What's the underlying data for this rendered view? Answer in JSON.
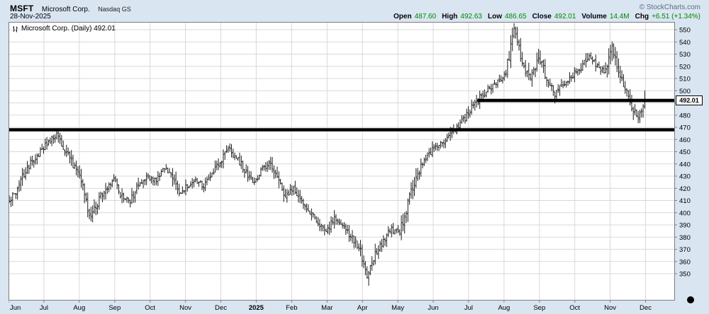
{
  "header": {
    "symbol": "MSFT",
    "company": "Microsoft Corp.",
    "exchange": "Nasdaq GS",
    "copyright": "© StockCharts.com",
    "date": "28-Nov-2025",
    "quote": [
      {
        "label": "Open",
        "value": "487.60"
      },
      {
        "label": "High",
        "value": "492.63"
      },
      {
        "label": "Low",
        "value": "486.65"
      },
      {
        "label": "Close",
        "value": "492.01"
      },
      {
        "label": "Volume",
        "value": "14.4M"
      },
      {
        "label": "Chg",
        "value": "+6.51 (+1.34%)"
      }
    ]
  },
  "legend": {
    "text": "Microsoft Corp. (Daily) 492.01"
  },
  "last_price_label": "492.01",
  "icons": {
    "chart_type": "mini-ohlc-glyph",
    "cursor_dot": "filled-black-circle"
  },
  "colors": {
    "background": "#d9e5f1",
    "plot_background": "#ffffff",
    "grid": "#d9d9d9",
    "frame": "#7f7f7f",
    "bar": "#1c1c1c",
    "annotation_line": "#000000",
    "up_value": "#008800",
    "copyright": "#5d6d7e"
  },
  "chart_data": {
    "type": "ohlc-bar",
    "title": "Microsoft Corp. (Daily) 492.01",
    "symbol": "MSFT",
    "timeframe": "Daily",
    "x_tick_labels": [
      "Jun",
      "Jul",
      "Aug",
      "Sep",
      "Oct",
      "Nov",
      "Dec",
      "2025",
      "Feb",
      "Mar",
      "Apr",
      "May",
      "Jun",
      "Jul",
      "Aug",
      "Sep",
      "Oct",
      "Nov",
      "Dec"
    ],
    "bold_x_tick": "2025",
    "y_ticks": [
      350,
      360,
      370,
      380,
      390,
      400,
      410,
      420,
      430,
      440,
      450,
      460,
      470,
      480,
      490,
      500,
      510,
      520,
      530,
      540,
      550
    ],
    "ylim": [
      328.0,
      556.4
    ],
    "grid": true,
    "legend_position": "top-left",
    "y_axis_side": "right",
    "last_close": 492.01,
    "ohlc_last": {
      "open": 487.6,
      "high": 492.63,
      "low": 486.65,
      "close": 492.01,
      "volume": "14.4M",
      "change": "+6.51 (+1.34%)"
    },
    "period_high": 555,
    "period_low": 345,
    "weekly_closes": [
      408,
      418,
      432,
      442,
      450,
      458,
      464,
      452,
      440,
      425,
      395,
      408,
      420,
      426,
      412,
      409,
      422,
      430,
      426,
      437,
      432,
      416,
      422,
      427,
      422,
      430,
      442,
      452,
      445,
      436,
      424,
      434,
      442,
      430,
      414,
      421,
      410,
      401,
      392,
      385,
      396,
      390,
      381,
      372,
      350,
      366,
      378,
      386,
      384,
      408,
      428,
      442,
      452,
      456,
      462,
      470,
      477,
      488,
      496,
      502,
      507,
      515,
      549,
      522,
      508,
      528,
      510,
      498,
      506,
      512,
      518,
      528,
      522,
      515,
      535,
      512,
      496,
      478,
      492
    ],
    "days_per_week": 5,
    "support_lines": [
      {
        "price": 468,
        "start_day": 0,
        "end_day": null
      },
      {
        "price": 492,
        "start_day": 287,
        "end_day": null
      }
    ],
    "seed": 7
  }
}
